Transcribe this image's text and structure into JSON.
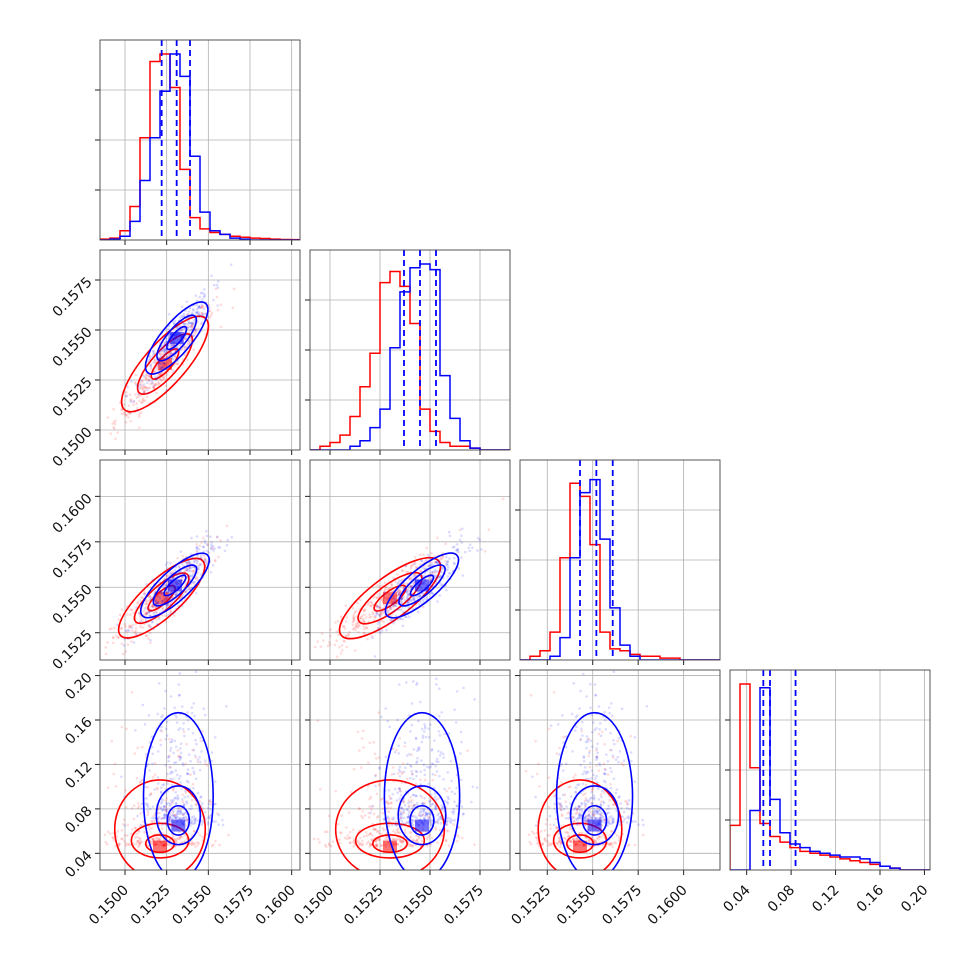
{
  "colors": {
    "red": "#ff0000",
    "blue": "#0000ff",
    "grid": "#b0b0b0"
  },
  "chart_data": {
    "type": "corner",
    "title": "",
    "parameters": [
      "",
      "",
      "",
      ""
    ],
    "series": [
      {
        "name": "",
        "color": "#ff0000",
        "quantile_lines": false
      },
      {
        "name": "",
        "color": "#0000ff",
        "quantile_lines": true
      }
    ],
    "axes": {
      "p0": {
        "range": [
          0.1485,
          0.1605
        ],
        "tick_labels": [
          "0.1500",
          "0.1525",
          "0.1550",
          "0.1575",
          "0.1600"
        ],
        "tick_values": [
          0.15,
          0.1525,
          0.155,
          0.1575,
          0.16
        ]
      },
      "p1": {
        "range": [
          0.149,
          0.159
        ],
        "tick_labels": [
          "0.1500",
          "0.1525",
          "0.1550",
          "0.1575"
        ],
        "tick_values": [
          0.15,
          0.1525,
          0.155,
          0.1575
        ]
      },
      "p2": {
        "range": [
          0.151,
          0.162
        ],
        "tick_labels": [
          "0.1525",
          "0.1550",
          "0.1575",
          "0.1600"
        ],
        "tick_values": [
          0.1525,
          0.155,
          0.1575,
          0.16
        ]
      },
      "p3": {
        "range": [
          0.025,
          0.205
        ],
        "tick_labels": [
          "0.04",
          "0.08",
          "0.12",
          "0.16",
          "0.20"
        ],
        "tick_values": [
          0.04,
          0.08,
          0.12,
          0.16,
          0.2
        ]
      }
    },
    "marginals": [
      {
        "param": "p0",
        "bin_edges": [
          0.1485,
          0.1491,
          0.1497,
          0.1503,
          0.1509,
          0.1515,
          0.1521,
          0.1527,
          0.1533,
          0.1539,
          0.1545,
          0.1551,
          0.1557,
          0.1563,
          0.1569,
          0.1575,
          0.1581,
          0.1587,
          0.1593,
          0.1599,
          0.1605
        ],
        "red": [
          0.005,
          0.01,
          0.05,
          0.18,
          0.55,
          0.96,
          1.0,
          0.82,
          0.38,
          0.12,
          0.06,
          0.04,
          0.03,
          0.02,
          0.015,
          0.01,
          0.008,
          0.005,
          0.003,
          0.002
        ],
        "blue": [
          0.0,
          0.005,
          0.02,
          0.1,
          0.32,
          0.55,
          0.8,
          1.0,
          0.88,
          0.45,
          0.15,
          0.05,
          0.03,
          0.01,
          0.005,
          0.0,
          0.0,
          0.0,
          0.0,
          0.0
        ],
        "blue_quantiles": [
          0.1522,
          0.1531,
          0.1539
        ]
      },
      {
        "param": "p1",
        "bin_edges": [
          0.149,
          0.1495,
          0.15,
          0.1505,
          0.151,
          0.1515,
          0.152,
          0.1525,
          0.153,
          0.1535,
          0.154,
          0.1545,
          0.155,
          0.1555,
          0.156,
          0.1565,
          0.157,
          0.1575,
          0.158,
          0.1585,
          0.159
        ],
        "red": [
          0.0,
          0.02,
          0.04,
          0.08,
          0.18,
          0.34,
          0.52,
          0.9,
          0.96,
          0.88,
          0.68,
          0.22,
          0.1,
          0.04,
          0.02,
          0.02,
          0.01,
          0.0,
          0.0,
          0.0
        ],
        "blue": [
          0.0,
          0.0,
          0.0,
          0.0,
          0.02,
          0.05,
          0.12,
          0.22,
          0.55,
          0.85,
          0.98,
          1.0,
          0.97,
          0.4,
          0.17,
          0.05,
          0.01,
          0.0,
          0.0,
          0.0
        ],
        "blue_quantiles": [
          0.1537,
          0.1545,
          0.1553
        ]
      },
      {
        "param": "p2",
        "bin_edges": [
          0.151,
          0.15155,
          0.1521,
          0.15265,
          0.1532,
          0.15375,
          0.1543,
          0.15485,
          0.1554,
          0.15595,
          0.1565,
          0.15705,
          0.1576,
          0.15815,
          0.1587,
          0.15925,
          0.1598,
          0.16035,
          0.1609,
          0.16145,
          0.162
        ],
        "red": [
          0.0,
          0.02,
          0.05,
          0.15,
          0.55,
          0.95,
          0.88,
          0.62,
          0.15,
          0.06,
          0.05,
          0.03,
          0.02,
          0.02,
          0.01,
          0.01,
          0.0,
          0.0,
          0.0,
          0.0
        ],
        "blue": [
          0.0,
          0.0,
          0.0,
          0.02,
          0.12,
          0.55,
          0.9,
          0.97,
          0.65,
          0.28,
          0.08,
          0.02,
          0.0,
          0.0,
          0.0,
          0.0,
          0.0,
          0.0,
          0.0,
          0.0
        ],
        "blue_quantiles": [
          0.1543,
          0.1552,
          0.1561
        ]
      },
      {
        "param": "p3",
        "bin_edges": [
          0.025,
          0.034,
          0.043,
          0.052,
          0.061,
          0.07,
          0.079,
          0.088,
          0.097,
          0.106,
          0.115,
          0.124,
          0.133,
          0.142,
          0.151,
          0.16,
          0.169,
          0.178,
          0.187,
          0.196,
          0.205
        ],
        "red": [
          0.24,
          1.0,
          0.55,
          0.25,
          0.18,
          0.15,
          0.12,
          0.1,
          0.09,
          0.08,
          0.07,
          0.06,
          0.05,
          0.04,
          0.03,
          0.02,
          0.01,
          0.0,
          0.0,
          0.0
        ],
        "blue": [
          0.0,
          0.0,
          0.32,
          0.98,
          0.38,
          0.2,
          0.14,
          0.12,
          0.1,
          0.09,
          0.08,
          0.07,
          0.07,
          0.06,
          0.04,
          0.02,
          0.01,
          0.0,
          0.0,
          0.0
        ],
        "blue_quantiles": [
          0.055,
          0.061,
          0.084
        ]
      }
    ],
    "joint": [
      {
        "x": "p0",
        "y": "p1",
        "red": {
          "center": [
            0.1524,
            0.1533
          ],
          "sd": [
            0.0013,
            0.0013
          ],
          "rho": 0.94
        },
        "blue": {
          "center": [
            0.1531,
            0.1546
          ],
          "sd": [
            0.0009,
            0.001
          ],
          "rho": 0.9
        }
      },
      {
        "x": "p0",
        "y": "p2",
        "red": {
          "center": [
            0.1522,
            0.1544
          ],
          "sd": [
            0.0013,
            0.0012
          ],
          "rho": 0.9
        },
        "blue": {
          "center": [
            0.153,
            0.1551
          ],
          "sd": [
            0.001,
            0.001
          ],
          "rho": 0.85
        }
      },
      {
        "x": "p0",
        "y": "p3",
        "red": {
          "center": [
            0.1521,
            0.046
          ],
          "sd": [
            0.0013,
            0.013
          ],
          "rho": 0.05
        },
        "blue": {
          "center": [
            0.1532,
            0.065
          ],
          "sd": [
            0.001,
            0.022
          ],
          "rho": 0.1
        }
      },
      {
        "x": "p1",
        "y": "p2",
        "red": {
          "center": [
            0.153,
            0.1544
          ],
          "sd": [
            0.0013,
            0.0012
          ],
          "rho": 0.9
        },
        "blue": {
          "center": [
            0.1546,
            0.1551
          ],
          "sd": [
            0.0009,
            0.001
          ],
          "rho": 0.85
        }
      },
      {
        "x": "p1",
        "y": "p3",
        "red": {
          "center": [
            0.153,
            0.046
          ],
          "sd": [
            0.0013,
            0.013
          ],
          "rho": 0.05
        },
        "blue": {
          "center": [
            0.1546,
            0.065
          ],
          "sd": [
            0.0009,
            0.022
          ],
          "rho": 0.1
        }
      },
      {
        "x": "p2",
        "y": "p3",
        "red": {
          "center": [
            0.1543,
            0.046
          ],
          "sd": [
            0.0011,
            0.013
          ],
          "rho": 0.05
        },
        "blue": {
          "center": [
            0.1551,
            0.065
          ],
          "sd": [
            0.001,
            0.022
          ],
          "rho": 0.1
        }
      }
    ],
    "grid": true,
    "legend": "none"
  }
}
